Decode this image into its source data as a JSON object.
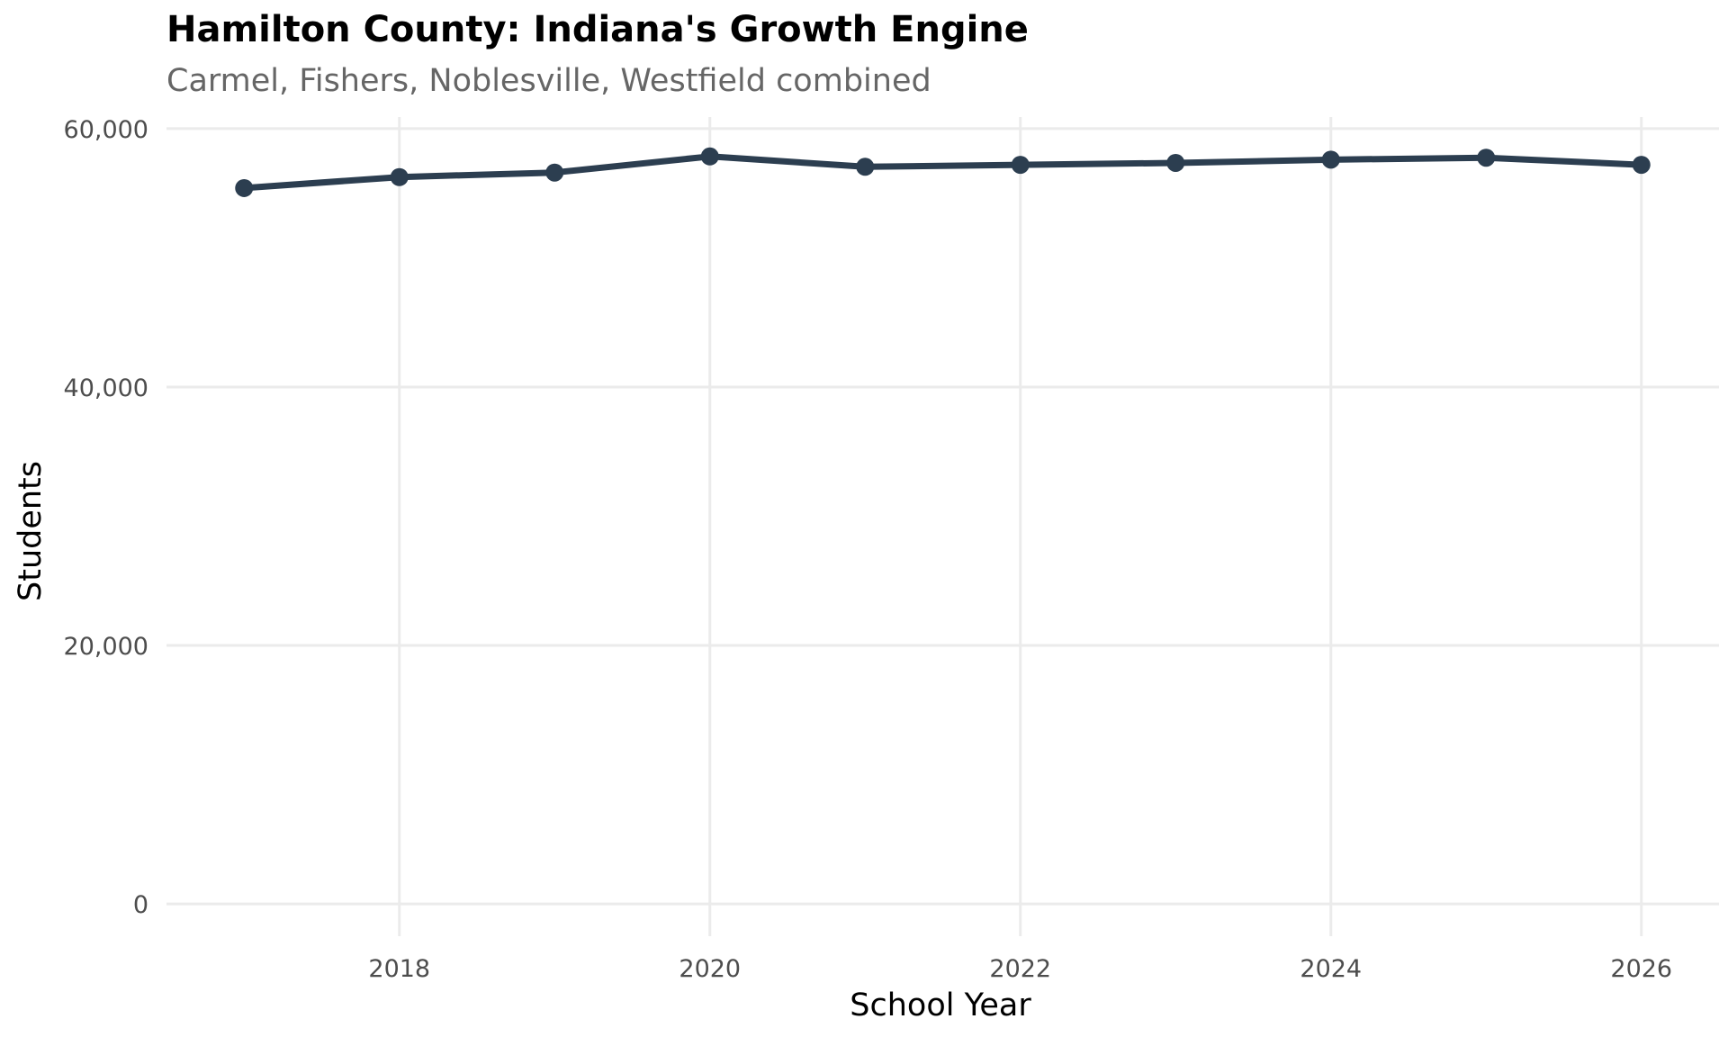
{
  "chart_data": {
    "type": "line",
    "title": "Hamilton County: Indiana's Growth Engine",
    "subtitle": "Carmel, Fishers, Noblesville, Westfield combined",
    "xlabel": "School Year",
    "ylabel": "Students",
    "x": [
      2017,
      2018,
      2019,
      2020,
      2021,
      2022,
      2023,
      2024,
      2025,
      2026
    ],
    "series": [
      {
        "name": "Hamilton County",
        "values": [
          55400,
          56250,
          56600,
          57850,
          57050,
          57200,
          57350,
          57600,
          57750,
          57200
        ]
      }
    ],
    "xlim": [
      2016.5,
      2026.5
    ],
    "ylim": [
      -2500,
      60900
    ],
    "x_ticks": [
      2018,
      2020,
      2022,
      2024,
      2026
    ],
    "x_tick_labels": [
      "2018",
      "2020",
      "2022",
      "2024",
      "2026"
    ],
    "y_ticks": [
      0,
      20000,
      40000,
      60000
    ],
    "y_tick_labels": [
      "0",
      "20,000",
      "40,000",
      "60,000"
    ],
    "grid": true,
    "legend": "none",
    "colors": {
      "line": "#2c3e50",
      "grid": "#ebebeb",
      "tick_text": "#4d4d4d",
      "subtitle": "#666666"
    }
  }
}
